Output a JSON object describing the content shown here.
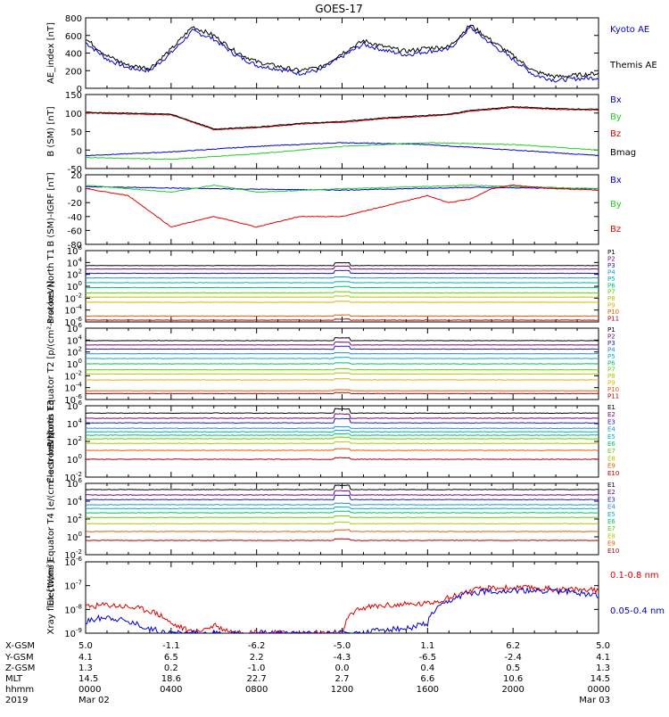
{
  "title": "GOES-17",
  "colors": {
    "black": "#000000",
    "blue": "#0000cc",
    "green": "#22cc22",
    "red": "#e00000",
    "channels": [
      "#000000",
      "#7a007a",
      "#1a1ad0",
      "#1f8fe0",
      "#00b0c0",
      "#00c070",
      "#60d000",
      "#b0c800",
      "#e0b000",
      "#e06000",
      "#b00000"
    ]
  },
  "time_axis": {
    "rows": [
      {
        "label": "X-GSM",
        "values": [
          "5.0",
          "-1.1",
          "-6.2",
          "-5.0",
          "1.1",
          "6.2",
          "5.0"
        ]
      },
      {
        "label": "Y-GSM",
        "values": [
          "4.1",
          "6.5",
          "2.2",
          "-4.3",
          "-6.5",
          "-2.4",
          "4.1"
        ]
      },
      {
        "label": "Z-GSM",
        "values": [
          "1.3",
          "0.2",
          "-1.0",
          "0.0",
          "0.4",
          "0.5",
          "1.3"
        ]
      },
      {
        "label": "MLT",
        "values": [
          "14.5",
          "18.6",
          "22.7",
          "2.7",
          "6.6",
          "10.6",
          "14.5"
        ]
      },
      {
        "label": "hhmm",
        "values": [
          "0000",
          "0400",
          "0800",
          "1200",
          "1600",
          "2000",
          "0000"
        ]
      },
      {
        "label": "2019",
        "values": [
          "Mar 02",
          "",
          "",
          "",
          "",
          "",
          "Mar 03"
        ]
      }
    ]
  },
  "chart_data": [
    {
      "type": "line",
      "ylabel": "AE_index [nT]",
      "ylim": [
        0,
        800
      ],
      "yticks": [
        "0",
        "200",
        "400",
        "600",
        "800"
      ],
      "series": [
        {
          "name": "Kyoto AE",
          "color": "blue",
          "x": [
            0,
            1,
            2,
            3,
            4,
            5,
            6,
            7,
            8,
            9,
            10,
            11,
            12,
            13,
            14,
            15,
            16,
            17,
            18,
            19,
            20,
            21,
            22,
            23,
            24
          ],
          "values": [
            520,
            330,
            230,
            200,
            400,
            650,
            560,
            380,
            260,
            220,
            170,
            210,
            360,
            500,
            430,
            380,
            420,
            440,
            690,
            500,
            330,
            150,
            90,
            110,
            120
          ]
        },
        {
          "name": "Themis AE",
          "color": "black",
          "x": [
            0,
            1,
            2,
            3,
            4,
            5,
            6,
            7,
            8,
            9,
            10,
            11,
            12,
            13,
            14,
            15,
            16,
            17,
            18,
            19,
            20,
            21,
            22,
            23,
            24
          ],
          "values": [
            560,
            370,
            260,
            230,
            440,
            700,
            600,
            420,
            300,
            250,
            200,
            240,
            400,
            540,
            470,
            420,
            460,
            470,
            720,
            540,
            370,
            190,
            130,
            150,
            170
          ]
        }
      ]
    },
    {
      "type": "line",
      "ylabel": "B (SM) [nT]",
      "ylim": [
        -50,
        150
      ],
      "yticks": [
        "-50",
        "0",
        "50",
        "100",
        "150"
      ],
      "series": [
        {
          "name": "Bx",
          "color": "blue",
          "x": [
            0,
            4,
            8,
            12,
            16,
            20,
            24
          ],
          "values": [
            -15,
            -5,
            10,
            20,
            15,
            0,
            -15
          ]
        },
        {
          "name": "By",
          "color": "green",
          "x": [
            0,
            4,
            8,
            12,
            16,
            20,
            24
          ],
          "values": [
            -20,
            -25,
            -10,
            10,
            20,
            15,
            0
          ]
        },
        {
          "name": "Bz",
          "color": "red",
          "x": [
            0,
            4,
            6,
            8,
            10,
            12,
            14,
            17,
            18,
            20,
            22,
            24
          ],
          "values": [
            100,
            95,
            55,
            60,
            70,
            75,
            85,
            95,
            105,
            115,
            110,
            108
          ]
        },
        {
          "name": "Bmag",
          "color": "black",
          "x": [
            0,
            4,
            6,
            8,
            10,
            12,
            14,
            17,
            18,
            20,
            22,
            24
          ],
          "values": [
            102,
            97,
            57,
            62,
            72,
            77,
            87,
            97,
            107,
            117,
            112,
            110
          ]
        }
      ]
    },
    {
      "type": "line",
      "ylabel": "B (SM)-IGRF [nT]",
      "ylim": [
        -80,
        20
      ],
      "yticks": [
        "-80",
        "-60",
        "-40",
        "-20",
        "0",
        "20"
      ],
      "series": [
        {
          "name": "Bx",
          "color": "blue",
          "x": [
            0,
            6,
            12,
            18,
            24
          ],
          "values": [
            3,
            0,
            -2,
            2,
            0
          ]
        },
        {
          "name": "By",
          "color": "green",
          "x": [
            0,
            4,
            6,
            8,
            12,
            18,
            24
          ],
          "values": [
            5,
            -5,
            5,
            -5,
            0,
            5,
            0
          ]
        },
        {
          "name": "Bz",
          "color": "red",
          "x": [
            0,
            2,
            4,
            6,
            8,
            10,
            12,
            14,
            16,
            17,
            18,
            19,
            20,
            22,
            24
          ],
          "values": [
            0,
            -10,
            -55,
            -40,
            -55,
            -40,
            -40,
            -25,
            -10,
            -20,
            -15,
            0,
            5,
            0,
            -2
          ]
        }
      ]
    },
    {
      "type": "line",
      "ylabel": "Protons North T1",
      "yscale": "log",
      "ylim": [
        1e-06,
        1000000.0
      ],
      "yticks": [
        "10-6",
        "10-4",
        "10-2",
        "100",
        "102",
        "104",
        "106"
      ],
      "series": [
        {
          "name": "P1",
          "color": "0",
          "values": [
            3000
          ]
        },
        {
          "name": "P2",
          "color": "1",
          "values": [
            800
          ]
        },
        {
          "name": "P3",
          "color": "2",
          "values": [
            150
          ]
        },
        {
          "name": "P4",
          "color": "3",
          "values": [
            25
          ]
        },
        {
          "name": "P5",
          "color": "4",
          "values": [
            4
          ]
        },
        {
          "name": "P6",
          "color": "5",
          "values": [
            0.6
          ]
        },
        {
          "name": "P7",
          "color": "6",
          "values": [
            0.08
          ]
        },
        {
          "name": "P8",
          "color": "7",
          "values": [
            0.015
          ]
        },
        {
          "name": "P9",
          "color": "8",
          "values": [
            0.002
          ]
        },
        {
          "name": "P10",
          "color": "9",
          "values": [
            1e-05
          ]
        },
        {
          "name": "P11",
          "color": "10",
          "values": [
            2e-06
          ]
        }
      ]
    },
    {
      "type": "line",
      "ylabel": "Protons Equator T2 [p/(cm²-s-sr-keV)]",
      "yscale": "log",
      "ylim": [
        1e-06,
        1000000.0
      ],
      "yticks": [
        "10-6",
        "10-4",
        "10-2",
        "100",
        "102",
        "104",
        "106"
      ],
      "series": [
        {
          "name": "P1",
          "color": "0",
          "values": [
            8000
          ]
        },
        {
          "name": "P2",
          "color": "1",
          "values": [
            1500
          ]
        },
        {
          "name": "P3",
          "color": "2",
          "values": [
            300
          ]
        },
        {
          "name": "P4",
          "color": "3",
          "values": [
            50
          ]
        },
        {
          "name": "P5",
          "color": "4",
          "values": [
            8
          ]
        },
        {
          "name": "P6",
          "color": "5",
          "values": [
            1
          ]
        },
        {
          "name": "P7",
          "color": "6",
          "values": [
            0.1
          ]
        },
        {
          "name": "P8",
          "color": "7",
          "values": [
            0.02
          ]
        },
        {
          "name": "P9",
          "color": "8",
          "values": [
            0.002
          ]
        },
        {
          "name": "P10",
          "color": "9",
          "values": [
            3e-05
          ]
        },
        {
          "name": "P11",
          "color": "10",
          "values": [
            1e-05
          ]
        }
      ]
    },
    {
      "type": "line",
      "ylabel": "Electrons North T3",
      "yscale": "log",
      "ylim": [
        0.01,
        1000000.0
      ],
      "yticks": [
        "10-2",
        "100",
        "102",
        "104",
        "106"
      ],
      "series": [
        {
          "name": "E1",
          "color": "0",
          "values": [
            150000
          ]
        },
        {
          "name": "E2",
          "color": "1",
          "values": [
            40000
          ]
        },
        {
          "name": "E3",
          "color": "2",
          "values": [
            12000
          ]
        },
        {
          "name": "E4",
          "color": "3",
          "values": [
            3000
          ]
        },
        {
          "name": "E5",
          "color": "4",
          "values": [
            1200
          ]
        },
        {
          "name": "E6",
          "color": "5",
          "values": [
            500
          ]
        },
        {
          "name": "E7",
          "color": "6",
          "values": [
            200
          ]
        },
        {
          "name": "E8",
          "color": "7",
          "values": [
            60
          ]
        },
        {
          "name": "E9",
          "color": "9",
          "values": [
            10
          ]
        },
        {
          "name": "E10",
          "color": "10",
          "values": [
            1
          ]
        }
      ]
    },
    {
      "type": "line",
      "ylabel": "Electrons Equator T4 [e/(cm²-s-sr-keV)]",
      "yscale": "log",
      "ylim": [
        0.01,
        1000000.0
      ],
      "yticks": [
        "10-2",
        "100",
        "102",
        "104",
        "106"
      ],
      "series": [
        {
          "name": "E1",
          "color": "0",
          "values": [
            200000
          ]
        },
        {
          "name": "E2",
          "color": "1",
          "values": [
            50000
          ]
        },
        {
          "name": "E3",
          "color": "2",
          "values": [
            15000
          ]
        },
        {
          "name": "E4",
          "color": "3",
          "values": [
            4000
          ]
        },
        {
          "name": "E5",
          "color": "4",
          "values": [
            1500
          ]
        },
        {
          "name": "E6",
          "color": "5",
          "values": [
            500
          ]
        },
        {
          "name": "E7",
          "color": "6",
          "values": [
            150
          ]
        },
        {
          "name": "E8",
          "color": "7",
          "values": [
            30
          ]
        },
        {
          "name": "E9",
          "color": "9",
          "values": [
            4
          ]
        },
        {
          "name": "E10",
          "color": "10",
          "values": [
            0.4
          ]
        }
      ]
    },
    {
      "type": "line",
      "ylabel": "Xray flux [W/m²]",
      "yscale": "log",
      "ylim": [
        1e-09,
        1e-06
      ],
      "yticks": [
        "10-9",
        "10-8",
        "10-7",
        "10-6"
      ],
      "series": [
        {
          "name": "0.1-0.8 nm",
          "color": "red",
          "x": [
            0,
            1,
            2,
            3,
            4,
            5,
            6,
            7,
            8,
            9,
            10,
            11,
            12,
            13,
            14,
            15,
            16,
            17,
            18,
            19,
            20,
            21,
            22,
            23,
            24
          ],
          "values": [
            1.3e-08,
            1.6e-08,
            1.3e-08,
            9e-09,
            2.5e-09,
            1e-09,
            2e-09,
            1e-09,
            1e-09,
            1e-09,
            1e-09,
            1e-09,
            1e-09,
            1.2e-08,
            1.5e-08,
            1.6e-08,
            1.8e-08,
            3e-08,
            6e-08,
            8e-08,
            8e-08,
            8e-08,
            7e-08,
            7e-08,
            6e-08
          ]
        },
        {
          "name": "0.05-0.4 nm",
          "color": "blue",
          "x": [
            0,
            1,
            2,
            3,
            4,
            5,
            6,
            7,
            8,
            9,
            10,
            11,
            12,
            13,
            14,
            15,
            16,
            17,
            18,
            19,
            20,
            21,
            22,
            23,
            24
          ],
          "values": [
            3e-09,
            5e-09,
            3e-09,
            1.5e-09,
            1e-09,
            1e-09,
            1e-09,
            1e-09,
            1e-09,
            1e-09,
            1e-09,
            1e-09,
            1e-09,
            1e-09,
            1.5e-09,
            1.5e-09,
            2.5e-09,
            2e-08,
            5e-08,
            6e-08,
            6e-08,
            6e-08,
            6e-08,
            5e-08,
            4e-08
          ]
        }
      ]
    }
  ]
}
